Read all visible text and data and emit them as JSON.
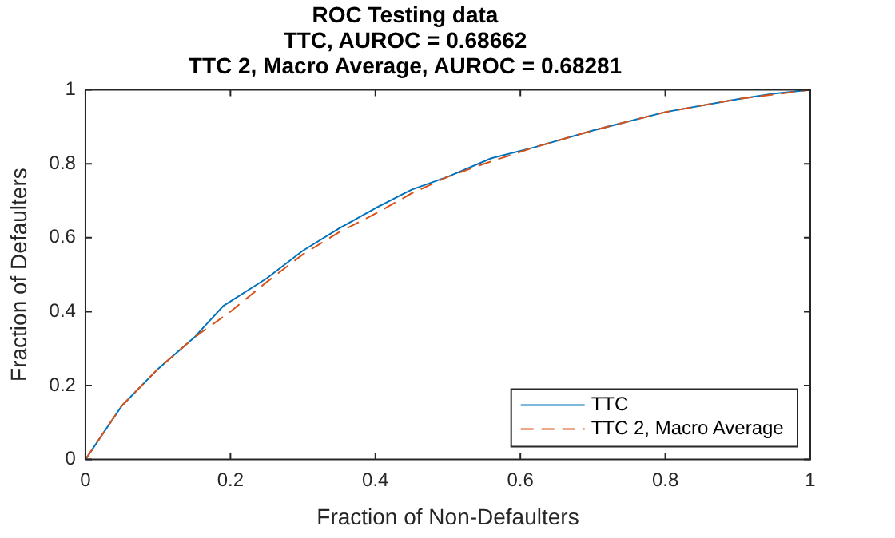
{
  "chart_data": {
    "type": "line",
    "title": "ROC Testing data\nTTC, AUROC = 0.68662\nTTC 2, Macro Average, AUROC = 0.68281",
    "xlabel": "Fraction of Non-Defaulters",
    "ylabel": "Fraction of Defaulters",
    "xlim": [
      0,
      1
    ],
    "ylim": [
      0,
      1
    ],
    "xticks": [
      0,
      0.2,
      0.4,
      0.6,
      0.8,
      1
    ],
    "yticks": [
      0,
      0.2,
      0.4,
      0.6,
      0.8,
      1
    ],
    "grid": false,
    "legend": "bottom right",
    "marker": "none",
    "series": [
      {
        "name": "TTC",
        "color": "#0072bd",
        "line_style": "solid",
        "x": [
          0,
          0.05,
          0.1,
          0.15,
          0.19,
          0.25,
          0.3,
          0.35,
          0.4,
          0.45,
          0.5,
          0.56,
          0.62,
          0.7,
          0.8,
          0.9,
          0.95,
          1
        ],
        "values": [
          0,
          0.145,
          0.245,
          0.33,
          0.415,
          0.49,
          0.565,
          0.625,
          0.68,
          0.73,
          0.765,
          0.815,
          0.845,
          0.89,
          0.94,
          0.975,
          0.99,
          1
        ]
      },
      {
        "name": "TTC 2, Macro Average",
        "color": "#d95319",
        "line_style": "dashed",
        "x": [
          0,
          0.05,
          0.1,
          0.15,
          0.2,
          0.25,
          0.3,
          0.35,
          0.4,
          0.45,
          0.5,
          0.55,
          0.62,
          0.7,
          0.8,
          0.9,
          1
        ],
        "values": [
          0,
          0.145,
          0.245,
          0.33,
          0.4,
          0.48,
          0.555,
          0.615,
          0.665,
          0.72,
          0.765,
          0.8,
          0.845,
          0.89,
          0.94,
          0.975,
          1
        ]
      }
    ]
  }
}
